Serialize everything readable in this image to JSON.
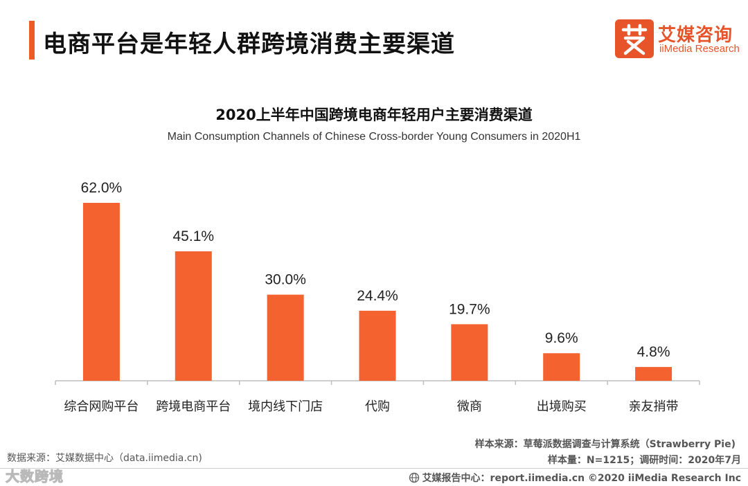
{
  "header": {
    "title": "电商平台是年轻人群跨境消费主要渠道",
    "logo_cn": "艾媒咨询",
    "logo_en": "iiMedia Research",
    "accent_color": "#f05a28"
  },
  "chart_data": {
    "type": "bar",
    "title": "2020上半年中国跨境电商年轻用户主要消费渠道",
    "subtitle": "Main Consumption Channels of Chinese Cross-border Young Consumers in 2020H1",
    "categories": [
      "综合网购平台",
      "跨境电商平台",
      "境内线下门店",
      "代购",
      "微商",
      "出境购买",
      "亲友捎带"
    ],
    "values": [
      62.0,
      45.1,
      30.0,
      24.4,
      19.7,
      9.6,
      4.8
    ],
    "data_labels": [
      "62.0%",
      "45.1%",
      "30.0%",
      "24.4%",
      "19.7%",
      "9.6%",
      "4.8%"
    ],
    "unit": "%",
    "ylim": [
      0,
      100
    ],
    "bar_color": "#f4622f",
    "grid": false,
    "legend": "none"
  },
  "footer": {
    "source_left": "数据来源：艾媒数据中心（data.iimedia.cn)",
    "sample_source": "样本来源：草莓派数据调查与计算系统（Strawberry Pie)",
    "sample_size": "样本量：N=1215；调研时间：2020年7月",
    "copyright": "艾媒报告中心：report.iimedia.cn ©2020 iiMedia Research Inc",
    "watermark": "大数跨境"
  }
}
